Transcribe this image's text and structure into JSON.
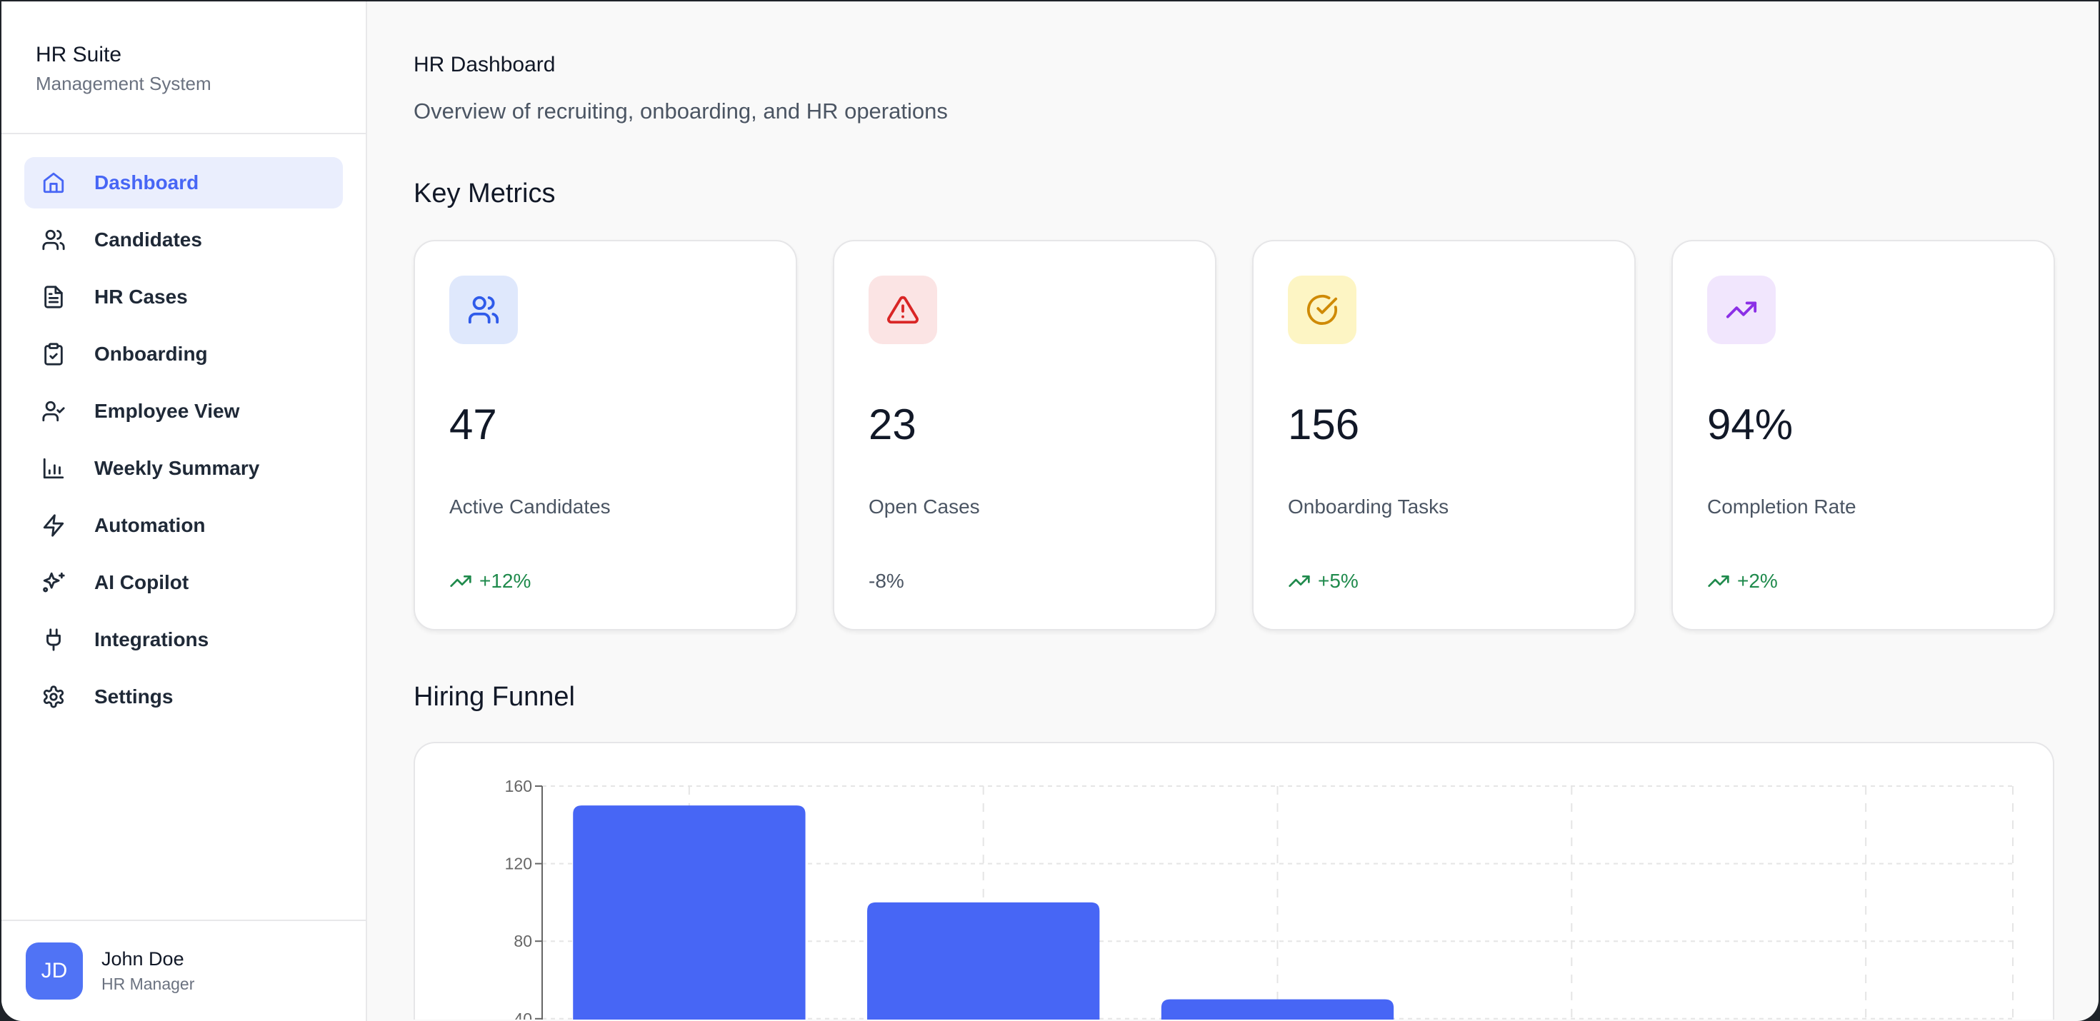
{
  "sidebar": {
    "title": "HR Suite",
    "subtitle": "Management System",
    "items": [
      {
        "label": "Dashboard",
        "icon": "home-icon",
        "active": true
      },
      {
        "label": "Candidates",
        "icon": "users-icon"
      },
      {
        "label": "HR Cases",
        "icon": "file-text-icon"
      },
      {
        "label": "Onboarding",
        "icon": "clipboard-check-icon"
      },
      {
        "label": "Employee View",
        "icon": "user-check-icon"
      },
      {
        "label": "Weekly Summary",
        "icon": "bar-chart-icon"
      },
      {
        "label": "Automation",
        "icon": "zap-icon"
      },
      {
        "label": "AI Copilot",
        "icon": "sparkles-icon"
      },
      {
        "label": "Integrations",
        "icon": "plug-icon"
      },
      {
        "label": "Settings",
        "icon": "gear-icon"
      }
    ],
    "user": {
      "initials": "JD",
      "name": "John Doe",
      "role": "HR Manager"
    }
  },
  "header": {
    "title": "HR Dashboard",
    "subtitle": "Overview of recruiting, onboarding, and HR operations"
  },
  "metrics": {
    "title": "Key Metrics",
    "cards": [
      {
        "value": "47",
        "label": "Active Candidates",
        "trend": "+12%",
        "trend_up": true,
        "icon": "users-icon",
        "color": "#2f5bea",
        "bg": "#dfe8fc"
      },
      {
        "value": "23",
        "label": "Open Cases",
        "trend": "-8%",
        "trend_up": false,
        "icon": "alert-triangle-icon",
        "color": "#d92626",
        "bg": "#fbe4e4"
      },
      {
        "value": "156",
        "label": "Onboarding Tasks",
        "trend": "+5%",
        "trend_up": true,
        "icon": "check-circle-icon",
        "color": "#cf8a06",
        "bg": "#fdf5c4"
      },
      {
        "value": "94%",
        "label": "Completion Rate",
        "trend": "+2%",
        "trend_up": true,
        "icon": "trending-up-icon",
        "color": "#8b2fe6",
        "bg": "#f1e6fd"
      }
    ]
  },
  "funnel": {
    "title": "Hiring Funnel"
  },
  "chart_data": {
    "type": "bar",
    "title": "",
    "yticks": [
      40,
      80,
      120,
      160
    ],
    "ylim": [
      0,
      160
    ],
    "values": [
      150,
      100,
      50,
      null,
      null
    ],
    "color": "#4766f5",
    "grid": true
  },
  "colors": {
    "accent": "#4766f5",
    "trend_up": "#1f8a4c",
    "trend_neutral": "#4b5563"
  }
}
